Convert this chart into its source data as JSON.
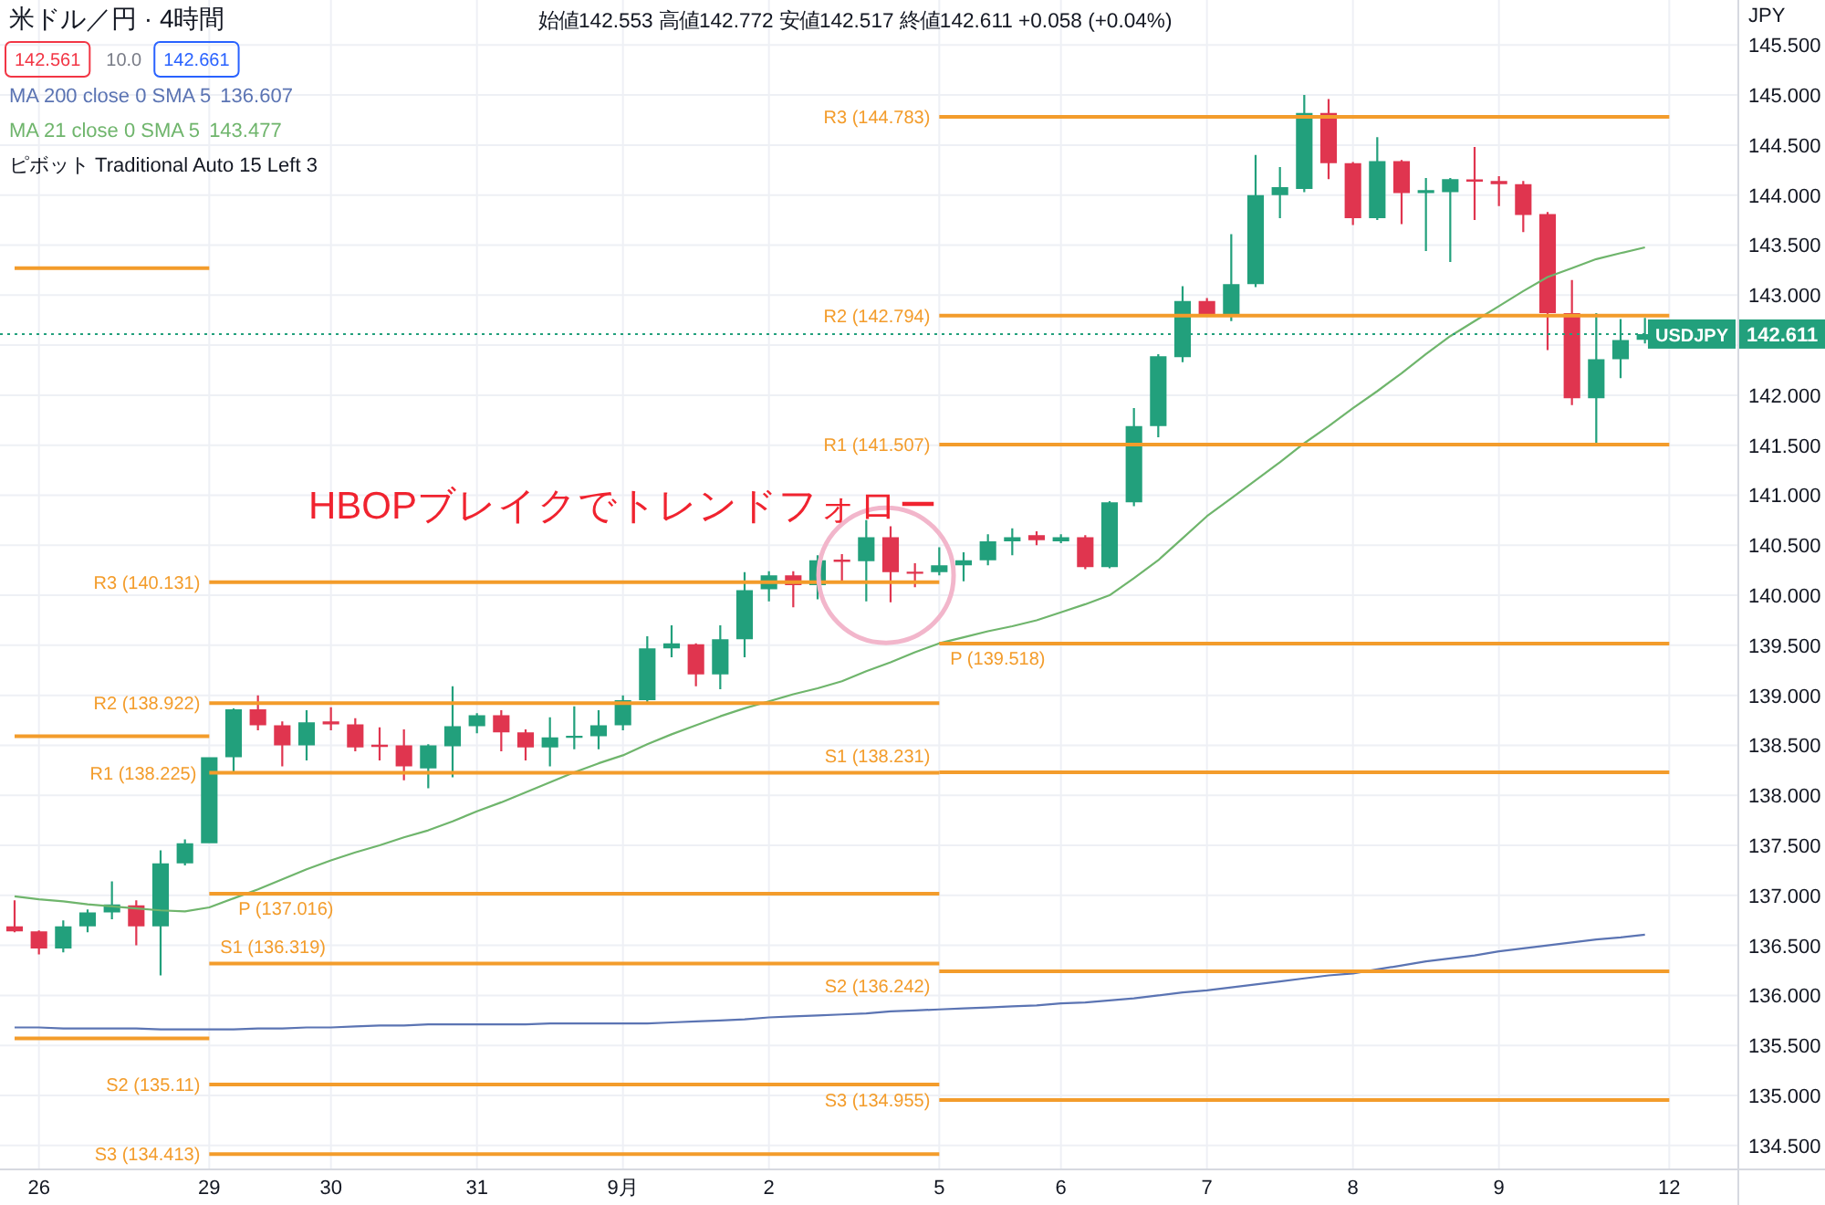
{
  "chart_data": {
    "type": "candlestick",
    "title": "米ドル／円 · 4時間",
    "subtitle": "始値142.553 高値142.772 安値142.517 終値142.611 +0.058 (+0.04%)",
    "ylabel": "JPY",
    "categories": [
      null,
      "26",
      null,
      null,
      null,
      null,
      null,
      null,
      "29",
      null,
      null,
      null,
      null,
      "30",
      null,
      null,
      null,
      null,
      null,
      "31",
      null,
      null,
      null,
      null,
      null,
      "9月",
      null,
      null,
      null,
      null,
      null,
      "2",
      null,
      null,
      null,
      null,
      null,
      null,
      "5",
      null,
      null,
      null,
      null,
      "6",
      null,
      null,
      null,
      null,
      null,
      "7",
      null,
      null,
      null,
      null,
      null,
      "8",
      null,
      null,
      null,
      null,
      null,
      "9",
      null,
      null,
      null,
      null,
      null,
      null,
      "12"
    ],
    "ylim": [
      134.27,
      145.95
    ],
    "yticks": [
      {
        "value": 134.5,
        "label": "134.500"
      },
      {
        "value": 135,
        "label": "135.000"
      },
      {
        "value": 135.5,
        "label": "135.500"
      },
      {
        "value": 136,
        "label": "136.000"
      },
      {
        "value": 136.5,
        "label": "136.500"
      },
      {
        "value": 137,
        "label": "137.000"
      },
      {
        "value": 137.5,
        "label": "137.500"
      },
      {
        "value": 138,
        "label": "138.000"
      },
      {
        "value": 138.5,
        "label": "138.500"
      },
      {
        "value": 139,
        "label": "139.000"
      },
      {
        "value": 139.5,
        "label": "139.500"
      },
      {
        "value": 140,
        "label": "140.000"
      },
      {
        "value": 140.5,
        "label": "140.500"
      },
      {
        "value": 141,
        "label": "141.000"
      },
      {
        "value": 141.5,
        "label": "141.500"
      },
      {
        "value": 142,
        "label": "142.000"
      },
      {
        "value": 142.5,
        "label": null
      },
      {
        "value": 143,
        "label": "143.000"
      },
      {
        "value": 143.5,
        "label": "143.500"
      },
      {
        "value": 144,
        "label": "144.000"
      },
      {
        "value": 144.5,
        "label": "144.500"
      },
      {
        "value": 145,
        "label": "145.000"
      },
      {
        "value": 145.5,
        "label": "145.500"
      }
    ],
    "grid": true,
    "legend": "top left",
    "ohlc": [
      [
        136.69,
        136.95,
        136.63,
        136.64
      ],
      [
        136.64,
        136.65,
        136.41,
        136.47
      ],
      [
        136.47,
        136.75,
        136.43,
        136.69
      ],
      [
        136.69,
        136.86,
        136.63,
        136.83
      ],
      [
        136.83,
        137.14,
        136.76,
        136.91
      ],
      [
        136.9,
        136.95,
        136.5,
        136.69
      ],
      [
        136.69,
        137.45,
        136.2,
        137.32
      ],
      [
        137.32,
        137.56,
        137.3,
        137.52
      ],
      [
        137.52,
        138.38,
        137.52,
        138.38
      ],
      [
        138.38,
        138.87,
        138.24,
        138.86
      ],
      [
        138.86,
        139.0,
        138.65,
        138.7
      ],
      [
        138.7,
        138.74,
        138.29,
        138.5
      ],
      [
        138.5,
        138.85,
        138.35,
        138.73
      ],
      [
        138.74,
        138.88,
        138.65,
        138.71
      ],
      [
        138.71,
        138.77,
        138.44,
        138.48
      ],
      [
        138.5,
        138.68,
        138.35,
        138.49
      ],
      [
        138.5,
        138.66,
        138.15,
        138.29
      ],
      [
        138.27,
        138.51,
        138.07,
        138.5
      ],
      [
        138.49,
        139.09,
        138.18,
        138.69
      ],
      [
        138.69,
        138.82,
        138.62,
        138.8
      ],
      [
        138.8,
        138.85,
        138.44,
        138.63
      ],
      [
        138.63,
        138.66,
        138.35,
        138.48
      ],
      [
        138.48,
        138.78,
        138.29,
        138.58
      ],
      [
        138.58,
        138.89,
        138.46,
        138.59
      ],
      [
        138.59,
        138.85,
        138.46,
        138.7
      ],
      [
        138.7,
        139.0,
        138.65,
        138.95
      ],
      [
        138.95,
        139.59,
        138.92,
        139.47
      ],
      [
        139.47,
        139.7,
        139.38,
        139.52
      ],
      [
        139.51,
        139.52,
        139.09,
        139.21
      ],
      [
        139.21,
        139.7,
        139.06,
        139.56
      ],
      [
        139.56,
        140.23,
        139.38,
        140.05
      ],
      [
        140.06,
        140.24,
        139.94,
        140.2
      ],
      [
        140.2,
        140.24,
        139.88,
        140.1
      ],
      [
        140.1,
        140.4,
        139.96,
        140.35
      ],
      [
        140.35,
        140.41,
        140.14,
        140.34
      ],
      [
        140.34,
        140.75,
        139.94,
        140.58
      ],
      [
        140.58,
        140.69,
        139.93,
        140.23
      ],
      [
        140.23,
        140.32,
        140.08,
        140.22
      ],
      [
        140.23,
        140.48,
        140.2,
        140.3
      ],
      [
        140.3,
        140.43,
        140.14,
        140.35
      ],
      [
        140.35,
        140.61,
        140.3,
        140.54
      ],
      [
        140.54,
        140.67,
        140.4,
        140.58
      ],
      [
        140.6,
        140.64,
        140.5,
        140.55
      ],
      [
        140.54,
        140.61,
        140.52,
        140.58
      ],
      [
        140.58,
        140.6,
        140.26,
        140.28
      ],
      [
        140.28,
        140.94,
        140.27,
        140.93
      ],
      [
        140.93,
        141.87,
        140.89,
        141.69
      ],
      [
        141.69,
        142.41,
        141.58,
        142.39
      ],
      [
        142.38,
        143.09,
        142.33,
        142.94
      ],
      [
        142.94,
        142.97,
        142.79,
        142.8
      ],
      [
        142.8,
        143.61,
        142.74,
        143.11
      ],
      [
        143.11,
        144.4,
        143.08,
        144.0
      ],
      [
        144.0,
        144.28,
        143.77,
        144.08
      ],
      [
        144.06,
        145.0,
        144.03,
        144.82
      ],
      [
        144.82,
        144.96,
        144.16,
        144.32
      ],
      [
        144.32,
        144.33,
        143.7,
        143.77
      ],
      [
        143.77,
        144.58,
        143.75,
        144.34
      ],
      [
        144.34,
        144.35,
        143.71,
        144.02
      ],
      [
        144.02,
        144.17,
        143.44,
        144.05
      ],
      [
        144.03,
        144.17,
        143.33,
        144.16
      ],
      [
        144.15,
        144.48,
        143.75,
        144.14
      ],
      [
        144.14,
        144.19,
        143.89,
        144.11
      ],
      [
        144.11,
        144.14,
        143.63,
        143.8
      ],
      [
        143.81,
        143.83,
        142.45,
        142.82
      ],
      [
        142.82,
        143.15,
        141.9,
        141.97
      ],
      [
        141.97,
        142.82,
        141.52,
        142.36
      ],
      [
        142.36,
        142.76,
        142.17,
        142.55
      ],
      [
        142.553,
        142.772,
        142.517,
        142.611
      ],
      null
    ],
    "colors": [
      "#e0354f",
      "#e0354f",
      "#22a07c",
      "#22a07c",
      "#22a07c",
      "#e0354f",
      "#22a07c",
      "#22a07c",
      "#22a07c",
      "#22a07c",
      "#e0354f",
      "#e0354f",
      "#22a07c",
      "#e0354f",
      "#e0354f",
      "#e0354f",
      "#e0354f",
      "#22a07c",
      "#22a07c",
      "#22a07c",
      "#e0354f",
      "#e0354f",
      "#22a07c",
      "#22a07c",
      "#22a07c",
      "#22a07c",
      "#22a07c",
      "#22a07c",
      "#e0354f",
      "#22a07c",
      "#22a07c",
      "#22a07c",
      "#e0354f",
      "#22a07c",
      "#e0354f",
      "#22a07c",
      "#e0354f",
      "#e0354f",
      "#22a07c",
      "#22a07c",
      "#22a07c",
      "#22a07c",
      "#e0354f",
      "#22a07c",
      "#e0354f",
      "#22a07c",
      "#22a07c",
      "#22a07c",
      "#22a07c",
      "#e0354f",
      "#22a07c",
      "#22a07c",
      "#22a07c",
      "#22a07c",
      "#e0354f",
      "#e0354f",
      "#22a07c",
      "#e0354f",
      "#22a07c",
      "#22a07c",
      "#e0354f",
      "#e0354f",
      "#e0354f",
      "#e0354f",
      "#e0354f",
      "#22a07c",
      "#22a07c",
      "#22a07c",
      null
    ],
    "series": [
      {
        "type": "line",
        "name": "MA 200 close 0 SMA 5 136.607",
        "color": "#5b74b3",
        "values": [
          135.68,
          135.68,
          135.67,
          135.67,
          135.67,
          135.67,
          135.66,
          135.66,
          135.66,
          135.66,
          135.67,
          135.67,
          135.68,
          135.68,
          135.69,
          135.7,
          135.7,
          135.71,
          135.71,
          135.71,
          135.71,
          135.71,
          135.72,
          135.72,
          135.72,
          135.72,
          135.72,
          135.73,
          135.74,
          135.75,
          135.76,
          135.78,
          135.79,
          135.8,
          135.81,
          135.82,
          135.84,
          135.85,
          135.86,
          135.87,
          135.88,
          135.89,
          135.9,
          135.92,
          135.93,
          135.95,
          135.97,
          136.0,
          136.03,
          136.05,
          136.08,
          136.11,
          136.14,
          136.17,
          136.2,
          136.22,
          136.26,
          136.3,
          136.34,
          136.37,
          136.4,
          136.44,
          136.47,
          136.5,
          136.53,
          136.56,
          136.58,
          136.607,
          null
        ]
      },
      {
        "type": "line",
        "name": "MA 21 close 0 SMA 5 143.477",
        "color": "#6fb56c",
        "values": [
          136.99,
          136.96,
          136.94,
          136.91,
          136.89,
          136.87,
          136.85,
          136.84,
          136.88,
          136.97,
          137.06,
          137.16,
          137.26,
          137.35,
          137.43,
          137.5,
          137.58,
          137.65,
          137.74,
          137.84,
          137.93,
          138.03,
          138.13,
          138.23,
          138.32,
          138.4,
          138.51,
          138.61,
          138.7,
          138.79,
          138.87,
          138.94,
          139.01,
          139.07,
          139.14,
          139.24,
          139.33,
          139.43,
          139.52,
          139.58,
          139.64,
          139.69,
          139.75,
          139.83,
          139.91,
          140.0,
          140.17,
          140.35,
          140.57,
          140.79,
          140.97,
          141.15,
          141.33,
          141.52,
          141.69,
          141.87,
          142.04,
          142.22,
          142.41,
          142.59,
          142.74,
          142.89,
          143.04,
          143.18,
          143.27,
          143.36,
          143.42,
          143.477,
          null
        ]
      },
      {
        "type": "line",
        "color": "#f39c2b",
        "values": [
          143.27,
          143.27,
          143.27,
          143.27,
          143.27,
          143.27,
          143.27,
          143.27,
          143.27,
          null,
          null,
          null,
          null,
          null,
          null,
          null,
          null,
          null,
          null,
          null,
          null,
          null,
          null,
          null,
          null,
          null,
          null,
          null,
          null,
          null,
          null,
          null,
          null,
          null,
          null,
          null,
          null,
          null,
          null,
          null,
          null,
          null,
          null,
          null,
          null,
          null,
          null,
          null,
          null,
          null,
          null,
          null,
          null,
          null,
          null,
          null,
          null,
          null,
          null,
          null,
          null,
          null,
          null,
          null,
          null,
          null,
          null,
          null,
          null
        ]
      },
      {
        "type": "line",
        "color": "#f39c2b",
        "values": [
          138.59,
          138.59,
          138.59,
          138.59,
          138.59,
          138.59,
          138.59,
          138.59,
          138.59,
          null,
          null,
          null,
          null,
          null,
          null,
          null,
          null,
          null,
          null,
          null,
          null,
          null,
          null,
          null,
          null,
          null,
          null,
          null,
          null,
          null,
          null,
          null,
          null,
          null,
          null,
          null,
          null,
          null,
          null,
          null,
          null,
          null,
          null,
          null,
          null,
          null,
          null,
          null,
          null,
          null,
          null,
          null,
          null,
          null,
          null,
          null,
          null,
          null,
          null,
          null,
          null,
          null,
          null,
          null,
          null,
          null,
          null,
          null,
          null
        ]
      },
      {
        "type": "line",
        "color": "#f39c2b",
        "values": [
          135.57,
          135.57,
          135.57,
          135.57,
          135.57,
          135.57,
          135.57,
          135.57,
          135.57,
          null,
          null,
          null,
          null,
          null,
          null,
          null,
          null,
          null,
          null,
          null,
          null,
          null,
          null,
          null,
          null,
          null,
          null,
          null,
          null,
          null,
          null,
          null,
          null,
          null,
          null,
          null,
          null,
          null,
          null,
          null,
          null,
          null,
          null,
          null,
          null,
          null,
          null,
          null,
          null,
          null,
          null,
          null,
          null,
          null,
          null,
          null,
          null,
          null,
          null,
          null,
          null,
          null,
          null,
          null,
          null,
          null,
          null,
          null,
          null
        ]
      },
      {
        "type": "line",
        "color": "#f39c2b",
        "values": [
          null,
          null,
          null,
          null,
          null,
          null,
          null,
          null,
          140.131,
          140.131,
          140.131,
          140.131,
          140.131,
          140.131,
          140.131,
          140.131,
          140.131,
          140.131,
          140.131,
          140.131,
          140.131,
          140.131,
          140.131,
          140.131,
          140.131,
          140.131,
          140.131,
          140.131,
          140.131,
          140.131,
          140.131,
          140.131,
          140.131,
          140.131,
          140.131,
          140.131,
          140.131,
          140.131,
          140.131,
          null,
          null,
          null,
          null,
          null,
          null,
          null,
          null,
          null,
          null,
          null,
          null,
          null,
          null,
          null,
          null,
          null,
          null,
          null,
          null,
          null,
          null,
          null,
          null,
          null,
          null,
          null,
          null,
          null,
          null
        ]
      },
      {
        "type": "line",
        "color": "#f39c2b",
        "values": [
          null,
          null,
          null,
          null,
          null,
          null,
          null,
          null,
          138.922,
          138.922,
          138.922,
          138.922,
          138.922,
          138.922,
          138.922,
          138.922,
          138.922,
          138.922,
          138.922,
          138.922,
          138.922,
          138.922,
          138.922,
          138.922,
          138.922,
          138.922,
          138.922,
          138.922,
          138.922,
          138.922,
          138.922,
          138.922,
          138.922,
          138.922,
          138.922,
          138.922,
          138.922,
          138.922,
          138.922,
          null,
          null,
          null,
          null,
          null,
          null,
          null,
          null,
          null,
          null,
          null,
          null,
          null,
          null,
          null,
          null,
          null,
          null,
          null,
          null,
          null,
          null,
          null,
          null,
          null,
          null,
          null,
          null,
          null,
          null
        ]
      },
      {
        "type": "line",
        "color": "#f39c2b",
        "values": [
          null,
          null,
          null,
          null,
          null,
          null,
          null,
          null,
          138.225,
          138.225,
          138.225,
          138.225,
          138.225,
          138.225,
          138.225,
          138.225,
          138.225,
          138.225,
          138.225,
          138.225,
          138.225,
          138.225,
          138.225,
          138.225,
          138.225,
          138.225,
          138.225,
          138.225,
          138.225,
          138.225,
          138.225,
          138.225,
          138.225,
          138.225,
          138.225,
          138.225,
          138.225,
          138.225,
          138.225,
          null,
          null,
          null,
          null,
          null,
          null,
          null,
          null,
          null,
          null,
          null,
          null,
          null,
          null,
          null,
          null,
          null,
          null,
          null,
          null,
          null,
          null,
          null,
          null,
          null,
          null,
          null,
          null,
          null,
          null
        ]
      },
      {
        "type": "line",
        "color": "#f39c2b",
        "values": [
          null,
          null,
          null,
          null,
          null,
          null,
          null,
          null,
          137.016,
          137.016,
          137.016,
          137.016,
          137.016,
          137.016,
          137.016,
          137.016,
          137.016,
          137.016,
          137.016,
          137.016,
          137.016,
          137.016,
          137.016,
          137.016,
          137.016,
          137.016,
          137.016,
          137.016,
          137.016,
          137.016,
          137.016,
          137.016,
          137.016,
          137.016,
          137.016,
          137.016,
          137.016,
          137.016,
          137.016,
          null,
          null,
          null,
          null,
          null,
          null,
          null,
          null,
          null,
          null,
          null,
          null,
          null,
          null,
          null,
          null,
          null,
          null,
          null,
          null,
          null,
          null,
          null,
          null,
          null,
          null,
          null,
          null,
          null,
          null
        ]
      },
      {
        "type": "line",
        "color": "#f39c2b",
        "values": [
          null,
          null,
          null,
          null,
          null,
          null,
          null,
          null,
          136.319,
          136.319,
          136.319,
          136.319,
          136.319,
          136.319,
          136.319,
          136.319,
          136.319,
          136.319,
          136.319,
          136.319,
          136.319,
          136.319,
          136.319,
          136.319,
          136.319,
          136.319,
          136.319,
          136.319,
          136.319,
          136.319,
          136.319,
          136.319,
          136.319,
          136.319,
          136.319,
          136.319,
          136.319,
          136.319,
          136.319,
          null,
          null,
          null,
          null,
          null,
          null,
          null,
          null,
          null,
          null,
          null,
          null,
          null,
          null,
          null,
          null,
          null,
          null,
          null,
          null,
          null,
          null,
          null,
          null,
          null,
          null,
          null,
          null,
          null,
          null
        ]
      },
      {
        "type": "line",
        "color": "#f39c2b",
        "values": [
          null,
          null,
          null,
          null,
          null,
          null,
          null,
          null,
          135.11,
          135.11,
          135.11,
          135.11,
          135.11,
          135.11,
          135.11,
          135.11,
          135.11,
          135.11,
          135.11,
          135.11,
          135.11,
          135.11,
          135.11,
          135.11,
          135.11,
          135.11,
          135.11,
          135.11,
          135.11,
          135.11,
          135.11,
          135.11,
          135.11,
          135.11,
          135.11,
          135.11,
          135.11,
          135.11,
          135.11,
          null,
          null,
          null,
          null,
          null,
          null,
          null,
          null,
          null,
          null,
          null,
          null,
          null,
          null,
          null,
          null,
          null,
          null,
          null,
          null,
          null,
          null,
          null,
          null,
          null,
          null,
          null,
          null,
          null,
          null
        ]
      },
      {
        "type": "line",
        "color": "#f39c2b",
        "values": [
          null,
          null,
          null,
          null,
          null,
          null,
          null,
          null,
          134.413,
          134.413,
          134.413,
          134.413,
          134.413,
          134.413,
          134.413,
          134.413,
          134.413,
          134.413,
          134.413,
          134.413,
          134.413,
          134.413,
          134.413,
          134.413,
          134.413,
          134.413,
          134.413,
          134.413,
          134.413,
          134.413,
          134.413,
          134.413,
          134.413,
          134.413,
          134.413,
          134.413,
          134.413,
          134.413,
          134.413,
          null,
          null,
          null,
          null,
          null,
          null,
          null,
          null,
          null,
          null,
          null,
          null,
          null,
          null,
          null,
          null,
          null,
          null,
          null,
          null,
          null,
          null,
          null,
          null,
          null,
          null,
          null,
          null,
          null,
          null
        ]
      },
      {
        "type": "line",
        "color": "#f39c2b",
        "values": [
          null,
          null,
          null,
          null,
          null,
          null,
          null,
          null,
          null,
          null,
          null,
          null,
          null,
          null,
          null,
          null,
          null,
          null,
          null,
          null,
          null,
          null,
          null,
          null,
          null,
          null,
          null,
          null,
          null,
          null,
          null,
          null,
          null,
          null,
          null,
          null,
          null,
          null,
          144.783,
          144.783,
          144.783,
          144.783,
          144.783,
          144.783,
          144.783,
          144.783,
          144.783,
          144.783,
          144.783,
          144.783,
          144.783,
          144.783,
          144.783,
          144.783,
          144.783,
          144.783,
          144.783,
          144.783,
          144.783,
          144.783,
          144.783,
          144.783,
          144.783,
          144.783,
          144.783,
          144.783,
          144.783,
          144.783,
          144.783
        ]
      },
      {
        "type": "line",
        "color": "#f39c2b",
        "values": [
          null,
          null,
          null,
          null,
          null,
          null,
          null,
          null,
          null,
          null,
          null,
          null,
          null,
          null,
          null,
          null,
          null,
          null,
          null,
          null,
          null,
          null,
          null,
          null,
          null,
          null,
          null,
          null,
          null,
          null,
          null,
          null,
          null,
          null,
          null,
          null,
          null,
          null,
          142.794,
          142.794,
          142.794,
          142.794,
          142.794,
          142.794,
          142.794,
          142.794,
          142.794,
          142.794,
          142.794,
          142.794,
          142.794,
          142.794,
          142.794,
          142.794,
          142.794,
          142.794,
          142.794,
          142.794,
          142.794,
          142.794,
          142.794,
          142.794,
          142.794,
          142.794,
          142.794,
          142.794,
          142.794,
          142.794,
          142.794
        ]
      },
      {
        "type": "line",
        "color": "#f39c2b",
        "values": [
          null,
          null,
          null,
          null,
          null,
          null,
          null,
          null,
          null,
          null,
          null,
          null,
          null,
          null,
          null,
          null,
          null,
          null,
          null,
          null,
          null,
          null,
          null,
          null,
          null,
          null,
          null,
          null,
          null,
          null,
          null,
          null,
          null,
          null,
          null,
          null,
          null,
          null,
          141.507,
          141.507,
          141.507,
          141.507,
          141.507,
          141.507,
          141.507,
          141.507,
          141.507,
          141.507,
          141.507,
          141.507,
          141.507,
          141.507,
          141.507,
          141.507,
          141.507,
          141.507,
          141.507,
          141.507,
          141.507,
          141.507,
          141.507,
          141.507,
          141.507,
          141.507,
          141.507,
          141.507,
          141.507,
          141.507,
          141.507
        ]
      },
      {
        "type": "line",
        "color": "#f39c2b",
        "values": [
          null,
          null,
          null,
          null,
          null,
          null,
          null,
          null,
          null,
          null,
          null,
          null,
          null,
          null,
          null,
          null,
          null,
          null,
          null,
          null,
          null,
          null,
          null,
          null,
          null,
          null,
          null,
          null,
          null,
          null,
          null,
          null,
          null,
          null,
          null,
          null,
          null,
          null,
          139.518,
          139.518,
          139.518,
          139.518,
          139.518,
          139.518,
          139.518,
          139.518,
          139.518,
          139.518,
          139.518,
          139.518,
          139.518,
          139.518,
          139.518,
          139.518,
          139.518,
          139.518,
          139.518,
          139.518,
          139.518,
          139.518,
          139.518,
          139.518,
          139.518,
          139.518,
          139.518,
          139.518,
          139.518,
          139.518,
          139.518
        ]
      },
      {
        "type": "line",
        "color": "#f39c2b",
        "values": [
          null,
          null,
          null,
          null,
          null,
          null,
          null,
          null,
          null,
          null,
          null,
          null,
          null,
          null,
          null,
          null,
          null,
          null,
          null,
          null,
          null,
          null,
          null,
          null,
          null,
          null,
          null,
          null,
          null,
          null,
          null,
          null,
          null,
          null,
          null,
          null,
          null,
          null,
          138.231,
          138.231,
          138.231,
          138.231,
          138.231,
          138.231,
          138.231,
          138.231,
          138.231,
          138.231,
          138.231,
          138.231,
          138.231,
          138.231,
          138.231,
          138.231,
          138.231,
          138.231,
          138.231,
          138.231,
          138.231,
          138.231,
          138.231,
          138.231,
          138.231,
          138.231,
          138.231,
          138.231,
          138.231,
          138.231,
          138.231
        ]
      },
      {
        "type": "line",
        "color": "#f39c2b",
        "values": [
          null,
          null,
          null,
          null,
          null,
          null,
          null,
          null,
          null,
          null,
          null,
          null,
          null,
          null,
          null,
          null,
          null,
          null,
          null,
          null,
          null,
          null,
          null,
          null,
          null,
          null,
          null,
          null,
          null,
          null,
          null,
          null,
          null,
          null,
          null,
          null,
          null,
          null,
          136.242,
          136.242,
          136.242,
          136.242,
          136.242,
          136.242,
          136.242,
          136.242,
          136.242,
          136.242,
          136.242,
          136.242,
          136.242,
          136.242,
          136.242,
          136.242,
          136.242,
          136.242,
          136.242,
          136.242,
          136.242,
          136.242,
          136.242,
          136.242,
          136.242,
          136.242,
          136.242,
          136.242,
          136.242,
          136.242,
          136.242
        ]
      },
      {
        "type": "line",
        "color": "#f39c2b",
        "values": [
          null,
          null,
          null,
          null,
          null,
          null,
          null,
          null,
          null,
          null,
          null,
          null,
          null,
          null,
          null,
          null,
          null,
          null,
          null,
          null,
          null,
          null,
          null,
          null,
          null,
          null,
          null,
          null,
          null,
          null,
          null,
          null,
          null,
          null,
          null,
          null,
          null,
          null,
          134.955,
          134.955,
          134.955,
          134.955,
          134.955,
          134.955,
          134.955,
          134.955,
          134.955,
          134.955,
          134.955,
          134.955,
          134.955,
          134.955,
          134.955,
          134.955,
          134.955,
          134.955,
          134.955,
          134.955,
          134.955,
          134.955,
          134.955,
          134.955,
          134.955,
          134.955,
          134.955,
          134.955,
          134.955,
          134.955,
          134.955
        ]
      }
    ],
    "ref_lines": [
      {
        "axis": "y",
        "value": 142.611,
        "label": "USDJPY 142.611",
        "color": "#22a07c",
        "line_style": "dotted"
      }
    ],
    "annotations": [
      "142.561",
      "10.0",
      "142.661",
      "ピボット Traditional Auto 15 Left 3",
      {
        "text": "HBOPブレイクでトレンドフォロー",
        "y": 140.2
      },
      {
        "text": "R3 (140.131)",
        "x": "29",
        "y": 140.131
      },
      {
        "text": "R2 (138.922)",
        "x": "29",
        "y": 138.922
      },
      {
        "text": "R1 (138.225)",
        "x": "29",
        "y": 138.225
      },
      {
        "text": "P (137.016)",
        "x": "29",
        "y": 137.016
      },
      {
        "text": "S1 (136.319)",
        "x": "29",
        "y": 136.319
      },
      {
        "text": "S2 (135.11)",
        "x": "29",
        "y": 135.11
      },
      {
        "text": "S3 (134.413)",
        "x": "29",
        "y": 134.413
      },
      {
        "text": "R3 (144.783)",
        "x": "5",
        "y": 144.783
      },
      {
        "text": "R2 (142.794)",
        "x": "5",
        "y": 142.794
      },
      {
        "text": "R1 (141.507)",
        "x": "5",
        "y": 141.507
      },
      {
        "text": "P (139.518)",
        "x": "5",
        "y": 139.518
      },
      {
        "text": "S1 (138.231)",
        "x": "5",
        "y": 138.231
      },
      {
        "text": "S2 (136.242)",
        "x": "5",
        "y": 136.242
      },
      {
        "text": "S3 (134.955)",
        "x": "5",
        "y": 134.955
      }
    ]
  }
}
